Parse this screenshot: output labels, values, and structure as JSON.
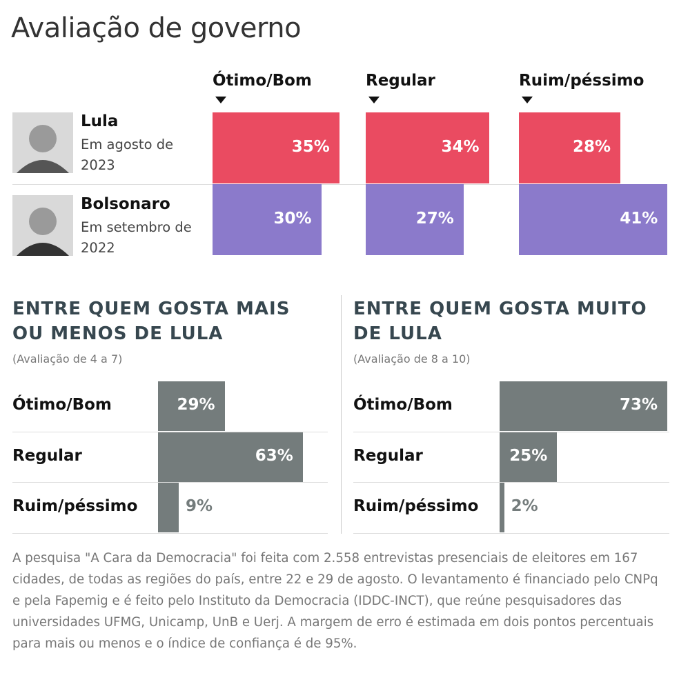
{
  "title": "Avaliação de governo",
  "chart_data": [
    {
      "type": "grouped-bar",
      "categories": [
        "Ótimo/Bom",
        "Regular",
        "Ruim/péssimo"
      ],
      "series": [
        {
          "name": "Lula",
          "period": "Em agosto de 2023",
          "color": "#ea4b61",
          "values": [
            35,
            34,
            28
          ],
          "value_labels": [
            "35%",
            "34%",
            "28%"
          ]
        },
        {
          "name": "Bolsonaro",
          "period": "Em setembro de 2022",
          "color": "#8b7acb",
          "values": [
            30,
            27,
            41
          ],
          "value_labels": [
            "30%",
            "27%",
            "41%"
          ]
        }
      ]
    },
    {
      "type": "hbar",
      "title": "ENTRE QUEM GOSTA MAIS OU MENOS DE LULA",
      "subtitle": "(Avaliação de 4 a 7)",
      "categories": [
        "Ótimo/Bom",
        "Regular",
        "Ruim/péssimo"
      ],
      "color": "#747c7c",
      "values": [
        29,
        63,
        9
      ],
      "value_labels": [
        "29%",
        "63%",
        "9%"
      ]
    },
    {
      "type": "hbar",
      "title": "ENTRE QUEM GOSTA MUITO DE LULA",
      "subtitle": "(Avaliação de 8 a 10)",
      "categories": [
        "Ótimo/Bom",
        "Regular",
        "Ruim/péssimo"
      ],
      "color": "#747c7c",
      "values": [
        73,
        25,
        2
      ],
      "value_labels": [
        "73%",
        "25%",
        "2%"
      ]
    }
  ],
  "note": "A pesquisa \"A Cara da Democracia\" foi feita com 2.558 entrevistas presenciais de eleitores em 167 cidades, de todas as regiões do país, entre 22 e 29 de agosto. O levantamento é financiado pelo CNPq e pela Fapemig e é feito pelo Instituto da Democracia (IDDC-INCT), que reúne pesquisadores das universidades UFMG, Unicamp, UnB e Uerj. A margem de erro é estimada em dois pontos percentuais para mais ou menos e o índice de confiança é de 95%."
}
